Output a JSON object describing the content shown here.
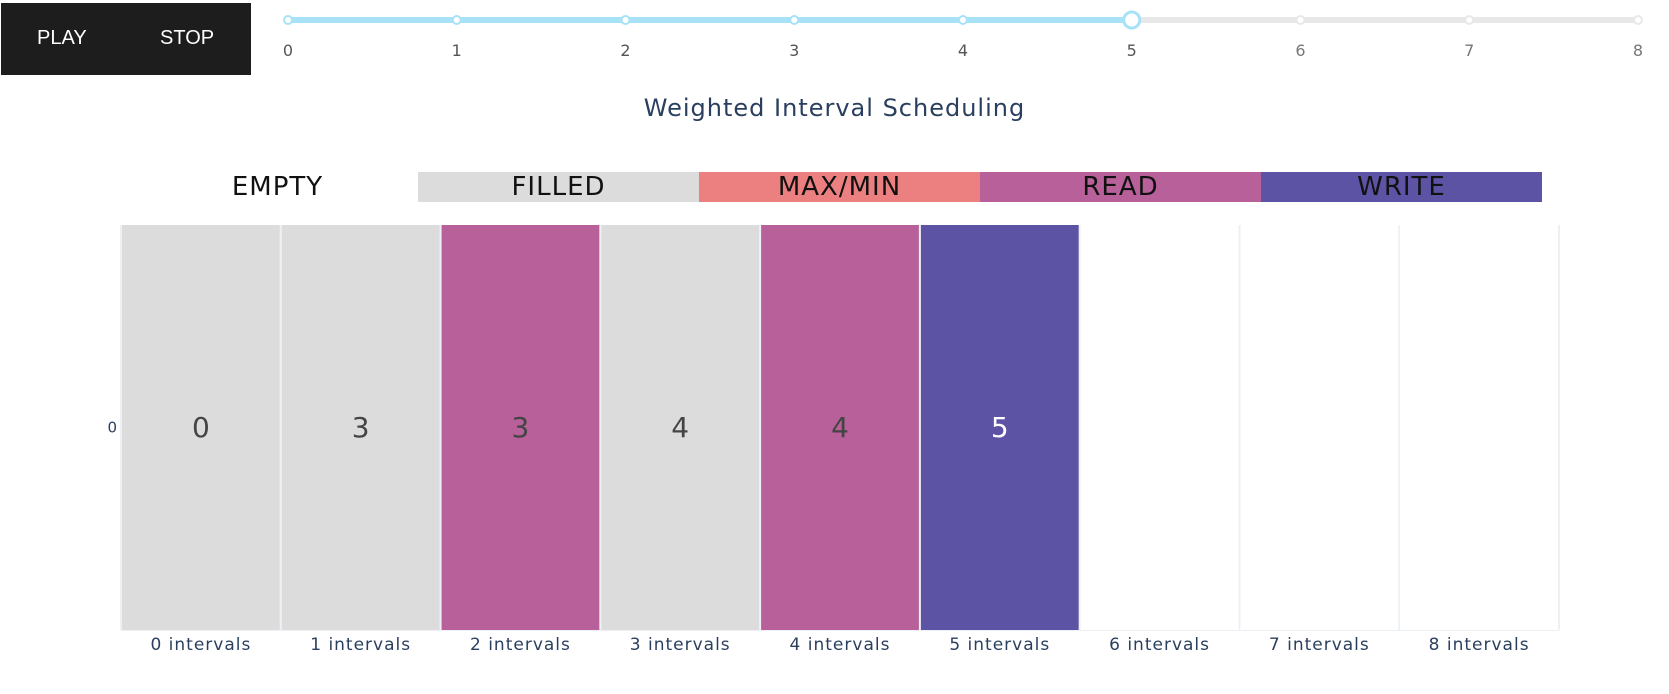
{
  "controls": {
    "play_label": "PLAY",
    "stop_label": "STOP"
  },
  "slider": {
    "steps": [
      "0",
      "1",
      "2",
      "3",
      "4",
      "5",
      "6",
      "7",
      "8"
    ],
    "current": 5,
    "active_color": "#a8e2f6",
    "inactive_color": "#e8e8e8"
  },
  "legend": [
    {
      "label": "EMPTY",
      "color": "#ffffff"
    },
    {
      "label": "FILLED",
      "color": "#dcdcdc"
    },
    {
      "label": "MAX/MIN",
      "color": "#ec8080"
    },
    {
      "label": "READ",
      "color": "#b76099"
    },
    {
      "label": "WRITE",
      "color": "#5c53a5"
    }
  ],
  "chart_data": {
    "type": "heatmap",
    "title": "Weighted Interval Scheduling",
    "x_labels": [
      "0 intervals",
      "1 intervals",
      "2 intervals",
      "3 intervals",
      "4 intervals",
      "5 intervals",
      "6 intervals",
      "7 intervals",
      "8 intervals"
    ],
    "y_labels": [
      "0"
    ],
    "values": [
      "0",
      "3",
      "3",
      "4",
      "4",
      "5",
      "",
      "",
      ""
    ],
    "states": [
      "FILLED",
      "FILLED",
      "READ",
      "FILLED",
      "READ",
      "WRITE",
      "EMPTY",
      "EMPTY",
      "EMPTY"
    ],
    "colors": {
      "EMPTY": "#ffffff",
      "FILLED": "#dcdcdc",
      "MAX/MIN": "#ec8080",
      "READ": "#b76099",
      "WRITE": "#5c53a5"
    },
    "text_colors": {
      "EMPTY": "#444444",
      "FILLED": "#444444",
      "MAX/MIN": "#444444",
      "READ": "#444444",
      "WRITE": "#ffffff"
    }
  }
}
